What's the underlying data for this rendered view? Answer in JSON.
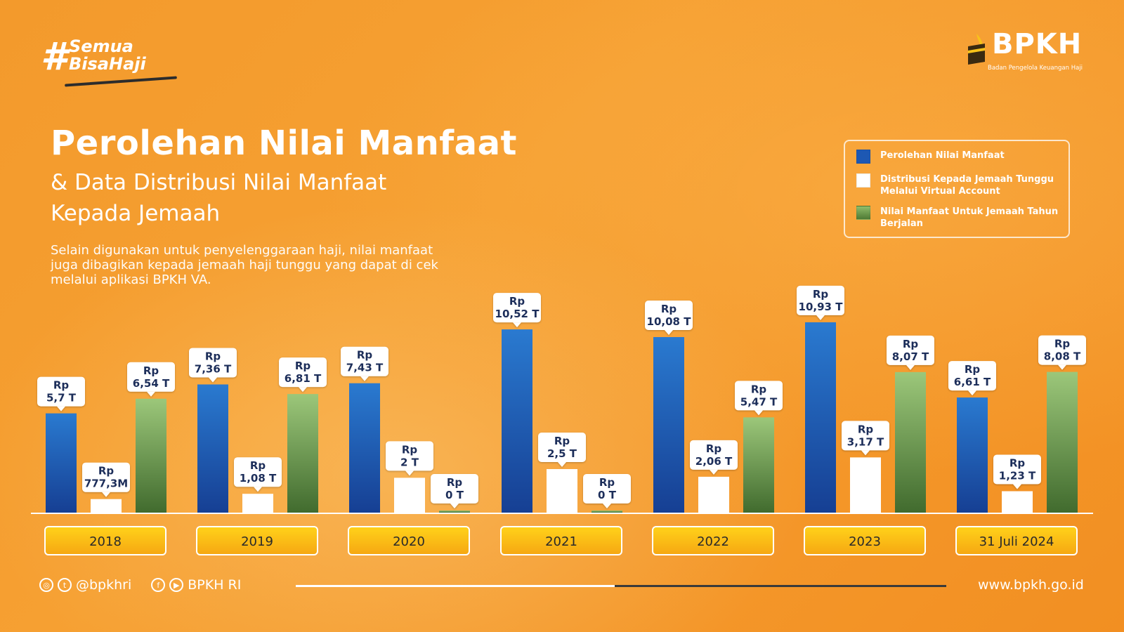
{
  "brand": {
    "hashtag_line1": "Semua",
    "hashtag_line2": "BisaHaji",
    "logo_name": "BPKH",
    "logo_subtitle": "Badan Pengelola Keuangan Haji"
  },
  "header": {
    "title": "Perolehan Nilai Manfaat",
    "subtitle_line1": "& Data Distribusi Nilai Manfaat",
    "subtitle_line2": "Kepada Jemaah",
    "description": "Selain digunakan untuk penyelenggaraan haji, nilai manfaat juga dibagikan kepada jemaah haji tunggu yang dapat di cek melalui aplikasi BPKH VA."
  },
  "legend": [
    {
      "label": "Perolehan Nilai Manfaat",
      "color": "#1d58b3"
    },
    {
      "label": "Distribusi Kepada Jemaah Tunggu Melalui Virtual Account",
      "color": "#ffffff"
    },
    {
      "label": "Nilai Manfaat Untuk Jemaah Tahun Berjalan",
      "color": "#6d9a4d"
    }
  ],
  "chart_data": {
    "type": "bar",
    "unit": "T",
    "categories": [
      "2018",
      "2019",
      "2020",
      "2021",
      "2022",
      "2023",
      "31 Juli 2024"
    ],
    "series": [
      {
        "name": "Perolehan Nilai Manfaat",
        "color": "#1d58b3",
        "values": [
          5.7,
          7.36,
          7.43,
          10.52,
          10.08,
          10.93,
          6.61
        ],
        "labels": [
          "5,7 T",
          "7,36 T",
          "7,43 T",
          "10,52 T",
          "10,08 T",
          "10,93 T",
          "6,61 T"
        ]
      },
      {
        "name": "Distribusi Kepada Jemaah Tunggu Melalui Virtual Account",
        "color": "#ffffff",
        "values": [
          0.7773,
          1.08,
          2.0,
          2.5,
          2.06,
          3.17,
          1.23
        ],
        "labels": [
          "777,3M",
          "1,08 T",
          "2 T",
          "2,5 T",
          "2,06 T",
          "3,17 T",
          "1,23 T"
        ]
      },
      {
        "name": "Nilai Manfaat Untuk Jemaah Tahun Berjalan",
        "color": "#6d9a4d",
        "values": [
          6.54,
          6.81,
          0,
          0,
          5.47,
          8.07,
          8.08
        ],
        "labels": [
          "6,54 T",
          "6,81 T",
          "0 T",
          "0 T",
          "5,47 T",
          "8,07 T",
          "8,08 T"
        ]
      }
    ],
    "label_prefix": "Rp",
    "xlabel": "",
    "ylabel": "",
    "grid": false
  },
  "footer": {
    "social_handle": "@bpkhri",
    "social_name": "BPKH RI",
    "website": "www.bpkh.go.id",
    "progress": 0.49
  },
  "icons": [
    "instagram-icon",
    "twitter-icon",
    "facebook-icon",
    "youtube-icon"
  ]
}
